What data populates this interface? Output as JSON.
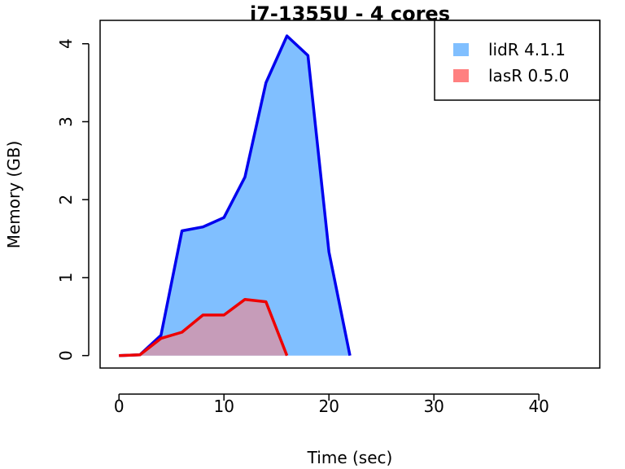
{
  "chart_data": {
    "type": "area",
    "title": "i7-1355U - 4 cores",
    "xlabel": "Time (sec)",
    "ylabel": "Memory (GB)",
    "xlim": [
      -1.8,
      45.8
    ],
    "ylim": [
      -0.16,
      4.3
    ],
    "xticks": [
      0,
      10,
      20,
      30,
      40
    ],
    "yticks": [
      0,
      1,
      2,
      3,
      4
    ],
    "grid": false,
    "legend_position": "top-right",
    "series": [
      {
        "name": "lidR 4.1.1",
        "fill": "#80bfff",
        "line": "#0000ee",
        "x": [
          0,
          2,
          4,
          6,
          8,
          10,
          12,
          14,
          16,
          18,
          20,
          22
        ],
        "y": [
          0.0,
          0.01,
          0.26,
          1.6,
          1.65,
          1.77,
          2.29,
          3.5,
          4.1,
          3.85,
          1.33,
          0.0
        ]
      },
      {
        "name": "lasR 0.5.0",
        "fill": "#ff8080",
        "line": "#ee0000",
        "x": [
          0,
          2,
          4,
          6,
          8,
          10,
          12,
          14,
          16
        ],
        "y": [
          0.0,
          0.01,
          0.22,
          0.3,
          0.52,
          0.52,
          0.72,
          0.69,
          0.0
        ]
      }
    ]
  }
}
